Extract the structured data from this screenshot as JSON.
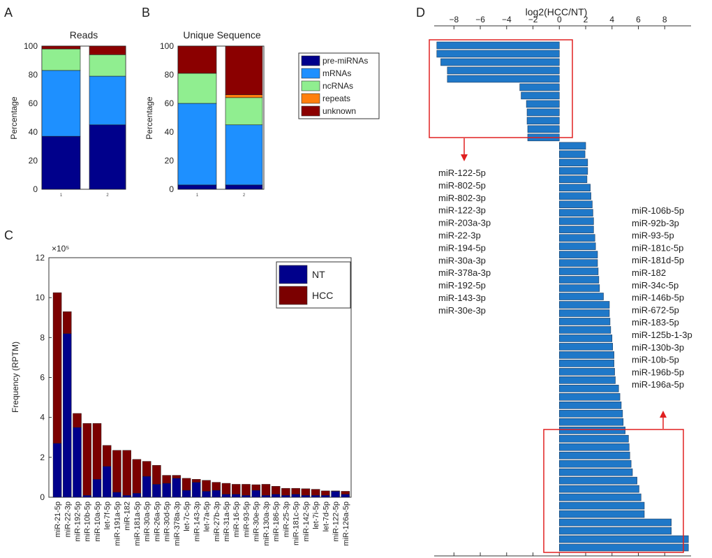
{
  "panels": {
    "a": "A",
    "b": "B",
    "c": "C",
    "d": "D"
  },
  "chart_data": [
    {
      "id": "A",
      "type": "bar",
      "title": "Reads",
      "xlabel": "",
      "ylabel": "Percentage",
      "ylim": [
        0,
        100
      ],
      "yticks": [
        0,
        20,
        40,
        60,
        80,
        100
      ],
      "categories": [
        "1",
        "2"
      ],
      "stacked": true,
      "series": [
        {
          "name": "pre-miRNAs",
          "color": "#00008b",
          "values": [
            37,
            45
          ]
        },
        {
          "name": "mRNAs",
          "color": "#1e90ff",
          "values": [
            46,
            34
          ]
        },
        {
          "name": "ncRNAs",
          "color": "#90ee90",
          "values": [
            15,
            15
          ]
        },
        {
          "name": "repeats",
          "color": "#ff7f0e",
          "values": [
            0,
            0
          ]
        },
        {
          "name": "unknown",
          "color": "#8b0000",
          "values": [
            2,
            6
          ]
        }
      ]
    },
    {
      "id": "B",
      "type": "bar",
      "title": "Unique Sequence",
      "xlabel": "",
      "ylabel": "Percentage",
      "ylim": [
        0,
        100
      ],
      "yticks": [
        0,
        20,
        40,
        60,
        80,
        100
      ],
      "categories": [
        "1",
        "2"
      ],
      "stacked": true,
      "legend": "right",
      "series": [
        {
          "name": "pre-miRNAs",
          "color": "#00008b",
          "values": [
            3,
            3
          ]
        },
        {
          "name": "mRNAs",
          "color": "#1e90ff",
          "values": [
            57,
            42
          ]
        },
        {
          "name": "ncRNAs",
          "color": "#90ee90",
          "values": [
            21,
            19
          ]
        },
        {
          "name": "repeats",
          "color": "#ff7f0e",
          "values": [
            0,
            2
          ]
        },
        {
          "name": "unknown",
          "color": "#8b0000",
          "values": [
            19,
            34
          ]
        }
      ]
    },
    {
      "id": "C",
      "type": "bar",
      "title": "",
      "xlabel": "",
      "ylabel": "Frequency (RPTM)",
      "yscale_label": "×10⁵",
      "ylim": [
        0,
        12
      ],
      "yticks": [
        0,
        2,
        4,
        6,
        8,
        10,
        12
      ],
      "stacked": true,
      "legend": "top-right",
      "categories": [
        "miR-21-5p",
        "miR-22-3p",
        "miR-192-5p",
        "miR-10b-5p",
        "miR-10a-5p",
        "let-7f-5p",
        "miR-191a-5p",
        "miR-182",
        "miR-181a-5p",
        "miR-30a-5p",
        "miR-26a-5p",
        "miR-30d-5p",
        "miR-378a-3p",
        "let-7c-5p",
        "miR-143-3p",
        "let-7a-5p",
        "miR-27b-3p",
        "miR-31a-5p",
        "miR-16-5p",
        "miR-93-5p",
        "miR-30e-5p",
        "miR-130a-3p",
        "miR-186-5p",
        "miR-25-3p",
        "miR-181c-5p",
        "miR-142-5p",
        "let-7i-5p",
        "let-7d-5p",
        "miR-122-5p",
        "miR-126a-5p"
      ],
      "series": [
        {
          "name": "NT",
          "color": "#00008b",
          "values": [
            2.7,
            8.2,
            3.5,
            0.1,
            0.9,
            1.55,
            0.25,
            0.1,
            0.2,
            1.05,
            0.65,
            0.7,
            0.95,
            0.35,
            0.75,
            0.3,
            0.35,
            0.15,
            0.15,
            0.1,
            0.35,
            0.1,
            0.15,
            0.1,
            0.15,
            0.1,
            0.1,
            0.1,
            0.3,
            0.15
          ]
        },
        {
          "name": "HCC",
          "color": "#7b0000",
          "values": [
            7.55,
            1.1,
            0.7,
            3.6,
            2.8,
            1.05,
            2.1,
            2.25,
            1.7,
            0.75,
            0.95,
            0.4,
            0.15,
            0.6,
            0.15,
            0.55,
            0.4,
            0.55,
            0.5,
            0.55,
            0.28,
            0.55,
            0.4,
            0.35,
            0.3,
            0.33,
            0.3,
            0.22,
            0.02,
            0.15
          ]
        }
      ]
    },
    {
      "id": "D",
      "type": "bar",
      "orientation": "horizontal",
      "title": "log2(HCC/NT)",
      "xlabel": "",
      "ylabel": "",
      "xlim": [
        -9.5,
        10
      ],
      "xticks": [
        -8,
        -6,
        -4,
        -2,
        0,
        2,
        4,
        6,
        8
      ],
      "color": "#1f78c8",
      "values": [
        -9.3,
        -9.3,
        -9.0,
        -8.5,
        -8.5,
        -3.0,
        -2.9,
        -2.5,
        -2.45,
        -2.45,
        -2.4,
        -2.4,
        2.0,
        1.95,
        2.15,
        2.15,
        2.1,
        2.35,
        2.4,
        2.5,
        2.55,
        2.6,
        2.6,
        2.7,
        2.75,
        2.9,
        2.9,
        2.95,
        3.0,
        3.05,
        3.35,
        3.8,
        3.8,
        3.85,
        3.9,
        4.0,
        4.05,
        4.15,
        4.15,
        4.2,
        4.25,
        4.5,
        4.6,
        4.7,
        4.8,
        4.85,
        5.0,
        5.25,
        5.3,
        5.35,
        5.45,
        5.55,
        5.9,
        6.05,
        6.2,
        6.45,
        6.45,
        8.5,
        8.5,
        9.8,
        9.8
      ]
    }
  ],
  "legend_b": [
    "pre-miRNAs",
    "mRNAs",
    "ncRNAs",
    "repeats",
    "unknown"
  ],
  "down_list": [
    "miR-122-5p",
    "miR-802-5p",
    "miR-802-3p",
    "miR-122-3p",
    "miR-203a-3p",
    "miR-22-3p",
    "miR-194-5p",
    "miR-30a-3p",
    "miR-378a-3p",
    "miR-192-5p",
    "miR-143-3p",
    "miR-30e-3p"
  ],
  "up_list": [
    "miR-106b-5p",
    "miR-92b-3p",
    "miR-93-5p",
    "miR-181c-5p",
    "miR-181d-5p",
    "miR-182",
    "miR-34c-5p",
    "miR-146b-5p",
    "miR-672-5p",
    "miR-183-5p",
    "miR-125b-1-3p",
    "miR-130b-3p",
    "miR-10b-5p",
    "miR-196b-5p",
    "miR-196a-5p"
  ]
}
